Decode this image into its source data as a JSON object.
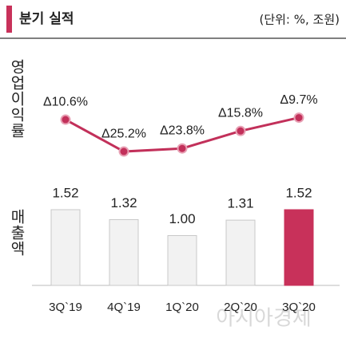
{
  "chart_data": {
    "type": "combo",
    "title": "분기 실적",
    "unit_note": "(단위: %, 조원)",
    "categories": [
      "3Q`19",
      "4Q`19",
      "1Q`20",
      "2Q`20",
      "3Q`20"
    ],
    "series": [
      {
        "name": "영업이익률",
        "kind": "line",
        "color": "#c2305a",
        "values": [
          -10.6,
          -25.2,
          -23.8,
          -15.8,
          -9.7
        ],
        "value_labels": [
          "Δ10.6%",
          "Δ25.2%",
          "Δ23.8%",
          "Δ15.8%",
          "Δ9.7%"
        ]
      },
      {
        "name": "매출액",
        "kind": "bar",
        "colors": [
          "#f2f2f2",
          "#f2f2f2",
          "#f2f2f2",
          "#f2f2f2",
          "#c8315a"
        ],
        "values": [
          1.52,
          1.32,
          1.0,
          1.31,
          1.52
        ],
        "value_labels": [
          "1.52",
          "1.32",
          "1.00",
          "1.31",
          "1.52"
        ]
      }
    ],
    "watermark": "아시아경제"
  }
}
